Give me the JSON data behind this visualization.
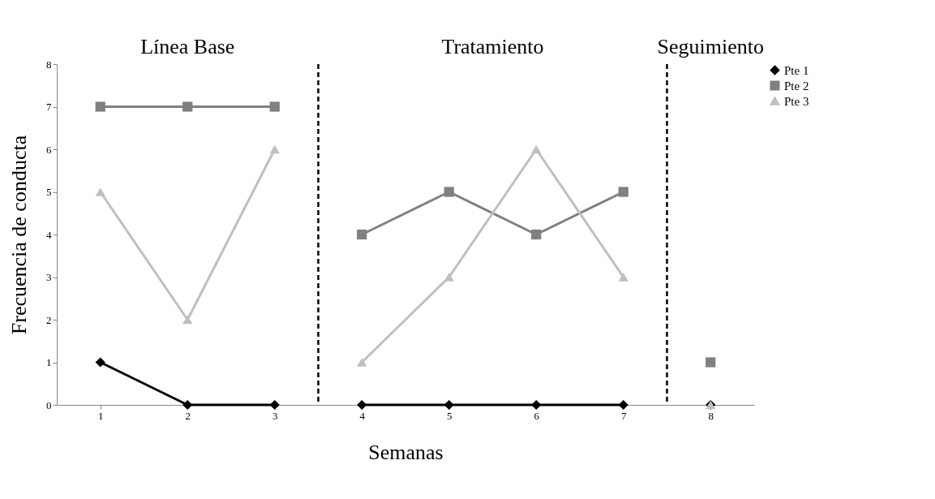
{
  "chart_data": {
    "type": "line",
    "xlabel": "Semanas",
    "ylabel": "Frecuencia de conducta",
    "annotations": [
      "Línea Base",
      "Tratamiento",
      "Seguimiento"
    ],
    "xlim": [
      0.5,
      8.5
    ],
    "xticks": [
      1,
      2,
      3,
      4,
      5,
      6,
      7,
      8
    ],
    "ylim": [
      0,
      8
    ],
    "yticks": [
      0,
      1,
      2,
      3,
      4,
      5,
      6,
      7,
      8
    ],
    "grid": false,
    "legend": "right",
    "line_style": "solid",
    "ref_lines": [
      {
        "axis": "x",
        "value": 3.5,
        "label": null,
        "color": "#000000",
        "line_style": "dashed"
      },
      {
        "axis": "x",
        "value": 7.5,
        "label": null,
        "color": "#000000",
        "line_style": "dashed"
      }
    ],
    "series": [
      {
        "name": "Pte 1",
        "color": "#000000",
        "marker": "diamond",
        "x": [
          1,
          2,
          3
        ],
        "values": [
          1,
          0,
          0
        ]
      },
      {
        "name": "Pte 2",
        "color": "#808080",
        "marker": "square",
        "x": [
          1,
          2,
          3
        ],
        "values": [
          7,
          7,
          7
        ]
      },
      {
        "name": "Pte 3",
        "color": "#bfbfbf",
        "marker": "triangle",
        "x": [
          1,
          2,
          3
        ],
        "values": [
          5,
          2,
          6
        ]
      },
      {
        "color": "#000000",
        "marker": "diamond",
        "x": [
          4,
          5,
          6,
          7
        ],
        "values": [
          0,
          0,
          0,
          0
        ]
      },
      {
        "color": "#808080",
        "marker": "square",
        "x": [
          4,
          5,
          6,
          7
        ],
        "values": [
          4,
          5,
          4,
          5
        ]
      },
      {
        "color": "#bfbfbf",
        "marker": "triangle",
        "x": [
          4,
          5,
          6,
          7
        ],
        "values": [
          1,
          3,
          6,
          3
        ]
      },
      {
        "color": "#000000",
        "marker": "diamond",
        "x": [
          8
        ],
        "values": [
          0
        ]
      },
      {
        "color": "#808080",
        "marker": "square",
        "x": [
          8
        ],
        "values": [
          1
        ]
      },
      {
        "color": "#bfbfbf",
        "marker": "triangle",
        "x": [
          8
        ],
        "values": [
          0
        ]
      }
    ]
  }
}
